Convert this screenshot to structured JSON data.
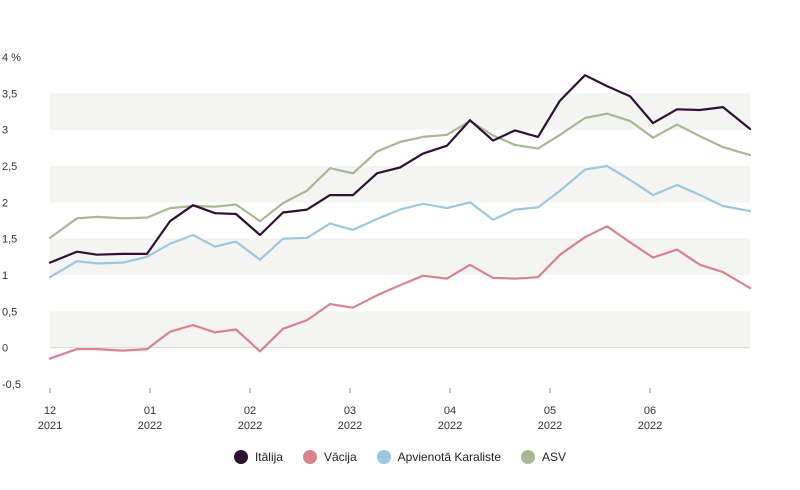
{
  "chart_data": {
    "type": "line",
    "y_ticks": [
      "4 %",
      "3,5",
      "3",
      "2,5",
      "2",
      "1,5",
      "1",
      "0,5",
      "0",
      "-0,5"
    ],
    "y_tick_values": [
      4,
      3.5,
      3,
      2.5,
      2,
      1.5,
      1,
      0.5,
      0,
      -0.5
    ],
    "ylim": [
      -0.5,
      4
    ],
    "x_ticks": [
      {
        "value": 0,
        "line1": "12",
        "line2": "2021"
      },
      {
        "value": 1,
        "line1": "01",
        "line2": "2022"
      },
      {
        "value": 2,
        "line1": "02",
        "line2": "2022"
      },
      {
        "value": 3,
        "line1": "03",
        "line2": "2022"
      },
      {
        "value": 4,
        "line1": "04",
        "line2": "2022"
      },
      {
        "value": 5,
        "line1": "05",
        "line2": "2022"
      },
      {
        "value": 6,
        "line1": "06",
        "line2": "2022"
      }
    ],
    "x": [
      0,
      0.27,
      0.47,
      0.73,
      0.97,
      1.2,
      1.43,
      1.65,
      1.86,
      2.1,
      2.33,
      2.57,
      2.8,
      3.03,
      3.27,
      3.5,
      3.73,
      3.97,
      4.2,
      4.43,
      4.65,
      4.88,
      5.1,
      5.35,
      5.57,
      5.8,
      6.03,
      6.27,
      6.5,
      6.73,
      7.0
    ],
    "series": [
      {
        "name": "Itālija",
        "color": "#2e1133",
        "values": [
          1.17,
          1.32,
          1.28,
          1.29,
          1.29,
          1.74,
          1.96,
          1.85,
          1.84,
          1.55,
          1.86,
          1.9,
          2.1,
          2.1,
          2.4,
          2.48,
          2.67,
          2.78,
          3.13,
          2.85,
          2.99,
          2.9,
          3.4,
          3.75,
          3.6,
          3.46,
          3.09,
          3.28,
          3.27,
          3.31,
          3.01
        ]
      },
      {
        "name": "Vācija",
        "color": "#d9838f",
        "values": [
          -0.15,
          -0.02,
          -0.02,
          -0.04,
          -0.02,
          0.22,
          0.31,
          0.21,
          0.25,
          -0.05,
          0.26,
          0.38,
          0.6,
          0.55,
          0.72,
          0.86,
          0.99,
          0.95,
          1.14,
          0.96,
          0.95,
          0.97,
          1.28,
          1.52,
          1.67,
          1.45,
          1.24,
          1.35,
          1.14,
          1.04,
          0.82
        ]
      },
      {
        "name": "Apvienotā Karaliste",
        "color": "#9cc7e0",
        "values": [
          0.97,
          1.19,
          1.16,
          1.17,
          1.25,
          1.43,
          1.55,
          1.39,
          1.46,
          1.21,
          1.5,
          1.51,
          1.71,
          1.62,
          1.77,
          1.9,
          1.98,
          1.92,
          2.0,
          1.76,
          1.9,
          1.93,
          2.16,
          2.45,
          2.5,
          2.31,
          2.1,
          2.24,
          2.1,
          1.95,
          1.88
        ]
      },
      {
        "name": "ASV",
        "color": "#a9b894",
        "values": [
          1.51,
          1.78,
          1.8,
          1.78,
          1.79,
          1.92,
          1.95,
          1.94,
          1.97,
          1.74,
          1.99,
          2.16,
          2.47,
          2.4,
          2.7,
          2.83,
          2.9,
          2.93,
          3.12,
          2.92,
          2.79,
          2.74,
          2.93,
          3.16,
          3.22,
          3.12,
          2.89,
          3.07,
          2.91,
          2.76,
          2.65
        ]
      }
    ],
    "banding": "alternating light gray bands between y ticks",
    "legend_position": "bottom-center"
  }
}
